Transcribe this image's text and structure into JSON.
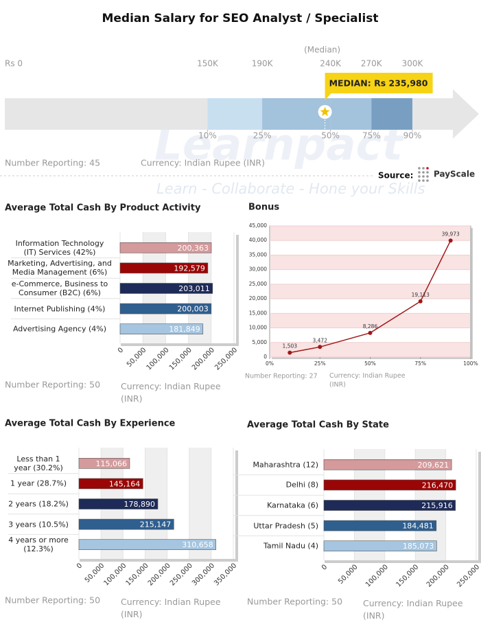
{
  "watermark": {
    "name": "Learnpact",
    "tagline": "Learn - Collaborate - Hone your Skills"
  },
  "chart_data": [
    {
      "type": "range",
      "title": "Median Salary for SEO Analyst / Specialist",
      "xlim": [
        0,
        300000
      ],
      "ticks": [
        {
          "value": 0,
          "label": "Rs 0"
        },
        {
          "value": 150000,
          "label": "150K"
        },
        {
          "value": 190000,
          "label": "190K"
        },
        {
          "value": 240000,
          "label": "240K"
        },
        {
          "value": 270000,
          "label": "270K"
        },
        {
          "value": 300000,
          "label": "300K"
        }
      ],
      "percentiles": [
        "10%",
        "25%",
        "50%",
        "75%",
        "90%"
      ],
      "colors": [
        "#c8dff0",
        "#a3c2dc",
        "#a3c2dc",
        "#789fc2"
      ],
      "median_caption": "(Median)",
      "median": 235980,
      "median_label": "MEDIAN: Rs 235,980",
      "footer": {
        "count": "Number Reporting: 45",
        "currency": "Currency: Indian Rupee (INR)"
      },
      "source_label": "Source:",
      "source": "PayScale"
    },
    {
      "type": "hbar",
      "title": "Average Total Cash By Product Activity",
      "categories": [
        "Information Technology\n(IT) Services (42%)",
        "Marketing, Advertising, and\nMedia Management (6%)",
        "e-Commerce, Business to\nConsumer (B2C) (6%)",
        "Internet Publishing (4%)",
        "Advertising Agency (4%)"
      ],
      "values": [
        200363,
        192579,
        203011,
        200003,
        181849
      ],
      "value_labels": [
        "200,363",
        "192,579",
        "203,011",
        "200,003",
        "181,849"
      ],
      "colors": [
        "#d49a9c",
        "#9a0606",
        "#1e2b58",
        "#2f5f8f",
        "#a5c5e0"
      ],
      "xlim": [
        0,
        250000
      ],
      "xticks": [
        0,
        {
          "value": 50000,
          "label": "50,000"
        },
        {
          "value": 100000,
          "label": "100,000"
        },
        {
          "value": 150000,
          "label": "150,000"
        },
        {
          "value": 200000,
          "label": "200,000"
        },
        {
          "value": 250000,
          "label": "250,000"
        }
      ],
      "footer": {
        "count": "Number Reporting: 50",
        "currency": "Currency: Indian Rupee (INR)"
      }
    },
    {
      "type": "line",
      "title": "Bonus",
      "x": [
        10,
        25,
        50,
        75,
        90
      ],
      "values": [
        1503,
        3472,
        8286,
        19113,
        39973
      ],
      "value_labels": [
        "1,503",
        "3,472",
        "8,286",
        "19,113",
        "39,973"
      ],
      "color": "#a01818",
      "xlim": [
        0,
        100
      ],
      "xticks": [
        {
          "value": 0,
          "label": "0%"
        },
        {
          "value": 25,
          "label": "25%"
        },
        {
          "value": 50,
          "label": "50%"
        },
        {
          "value": 75,
          "label": "75%"
        },
        {
          "value": 100,
          "label": "100%"
        }
      ],
      "ylim": [
        0,
        45000
      ],
      "yticks": [
        0,
        {
          "value": 5000,
          "label": "5,000"
        },
        {
          "value": 10000,
          "label": "10,000"
        },
        {
          "value": 15000,
          "label": "15,000"
        },
        {
          "value": 20000,
          "label": "20,000"
        },
        {
          "value": 25000,
          "label": "25,000"
        },
        {
          "value": 30000,
          "label": "30,000"
        },
        {
          "value": 35000,
          "label": "35,000"
        },
        {
          "value": 40000,
          "label": "40,000"
        },
        {
          "value": 45000,
          "label": "45,000"
        }
      ],
      "footer": {
        "count": "Number Reporting: 27",
        "currency": "Currency: Indian Rupee (INR)"
      }
    },
    {
      "type": "hbar",
      "title": "Average Total Cash By Experience",
      "categories": [
        "Less than 1\nyear (30.2%)",
        "1 year (28.7%)",
        "2 years (18.2%)",
        "3 years (10.5%)",
        "4 years or more\n(12.3%)"
      ],
      "values": [
        115066,
        145164,
        178890,
        215147,
        310658
      ],
      "value_labels": [
        "115,066",
        "145,164",
        "178,890",
        "215,147",
        "310,658"
      ],
      "colors": [
        "#d49a9c",
        "#9a0606",
        "#1e2b58",
        "#2f5f8f",
        "#a5c5e0"
      ],
      "xlim": [
        0,
        350000
      ],
      "xticks": [
        0,
        {
          "value": 50000,
          "label": "50,000"
        },
        {
          "value": 100000,
          "label": "100,000"
        },
        {
          "value": 150000,
          "label": "150,000"
        },
        {
          "value": 200000,
          "label": "200,000"
        },
        {
          "value": 250000,
          "label": "250,000"
        },
        {
          "value": 300000,
          "label": "300,000"
        },
        {
          "value": 350000,
          "label": "350,000"
        }
      ],
      "footer": {
        "count": "Number Reporting: 50",
        "currency": "Currency: Indian Rupee (INR)"
      }
    },
    {
      "type": "hbar",
      "title": "Average Total Cash By State",
      "categories": [
        "Maharashtra (12)",
        "Delhi (8)",
        "Karnataka (6)",
        "Uttar Pradesh (5)",
        "Tamil Nadu (4)"
      ],
      "values": [
        209621,
        216470,
        215916,
        184481,
        185073
      ],
      "value_labels": [
        "209,621",
        "216,470",
        "215,916",
        "184,481",
        "185,073"
      ],
      "colors": [
        "#d49a9c",
        "#9a0606",
        "#1e2b58",
        "#2f5f8f",
        "#a5c5e0"
      ],
      "xlim": [
        0,
        250000
      ],
      "xticks": [
        0,
        {
          "value": 50000,
          "label": "50,000"
        },
        {
          "value": 100000,
          "label": "100,000"
        },
        {
          "value": 150000,
          "label": "150,000"
        },
        {
          "value": 200000,
          "label": "200,000"
        },
        {
          "value": 250000,
          "label": "250,000"
        }
      ],
      "footer": {
        "count": "Number Reporting: 50",
        "currency": "Currency: Indian Rupee (INR)"
      }
    }
  ]
}
